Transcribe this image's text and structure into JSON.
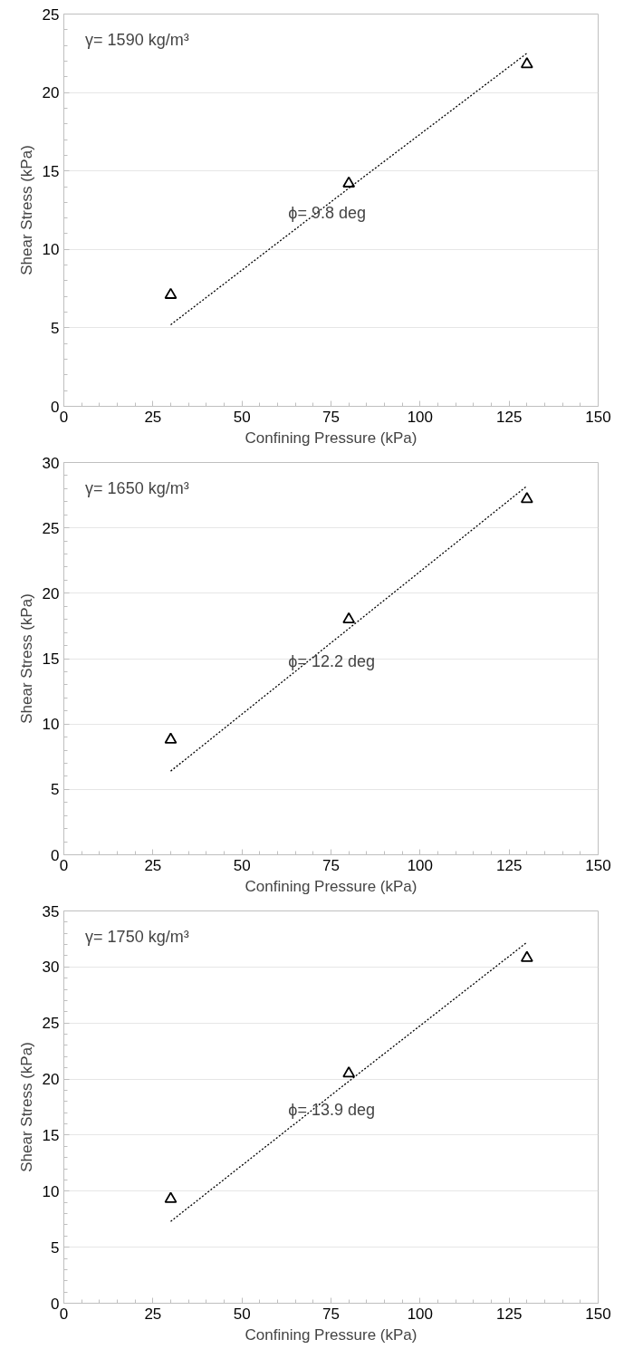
{
  "chart_data": [
    {
      "type": "scatter",
      "xlabel": "Confining Pressure (kPa)",
      "ylabel": "Shear Stress (kPa)",
      "xlim": [
        0,
        150
      ],
      "xticks": [
        0,
        25,
        50,
        75,
        100,
        125,
        150
      ],
      "ylim": [
        0,
        25
      ],
      "yticks": [
        0,
        5,
        10,
        15,
        20,
        25
      ],
      "grid": "y",
      "marker": "triangle",
      "x": [
        30,
        80,
        130
      ],
      "series": [
        {
          "color": "#000000",
          "values": [
            7.1,
            14.2,
            21.8
          ]
        },
        {
          "type": "line",
          "values": [
            5.2,
            13.9,
            22.5
          ],
          "color": "#000000",
          "line_style": "dotted",
          "marker": "none"
        }
      ],
      "annotations": [
        "γ= 1590 kg/m³",
        "ϕ= 9.8 deg"
      ]
    },
    {
      "type": "scatter",
      "xlabel": "Confining Pressure (kPa)",
      "ylabel": "Shear Stress (kPa)",
      "xlim": [
        0,
        150
      ],
      "xticks": [
        0,
        25,
        50,
        75,
        100,
        125,
        150
      ],
      "ylim": [
        0,
        30
      ],
      "yticks": [
        0,
        5,
        10,
        15,
        20,
        25,
        30
      ],
      "grid": "y",
      "marker": "triangle",
      "x": [
        30,
        80,
        130
      ],
      "series": [
        {
          "color": "#000000",
          "values": [
            8.8,
            18.0,
            27.2
          ]
        },
        {
          "type": "line",
          "values": [
            6.4,
            17.3,
            28.2
          ],
          "color": "#000000",
          "line_style": "dotted",
          "marker": "none"
        }
      ],
      "annotations": [
        "γ= 1650 kg/m³",
        "ϕ= 12.2 deg"
      ]
    },
    {
      "type": "scatter",
      "xlabel": "Confining Pressure (kPa)",
      "ylabel": "Shear Stress (kPa)",
      "xlim": [
        0,
        150
      ],
      "xticks": [
        0,
        25,
        50,
        75,
        100,
        125,
        150
      ],
      "ylim": [
        0,
        35
      ],
      "yticks": [
        0,
        5,
        10,
        15,
        20,
        25,
        30,
        35
      ],
      "grid": "y",
      "marker": "triangle",
      "x": [
        30,
        80,
        130
      ],
      "series": [
        {
          "color": "#000000",
          "values": [
            9.3,
            20.5,
            30.8
          ]
        },
        {
          "type": "line",
          "values": [
            7.3,
            19.8,
            32.2
          ],
          "color": "#000000",
          "line_style": "dotted",
          "marker": "none"
        }
      ],
      "annotations": [
        "γ= 1750 kg/m³",
        "ϕ= 13.9 deg"
      ]
    }
  ]
}
